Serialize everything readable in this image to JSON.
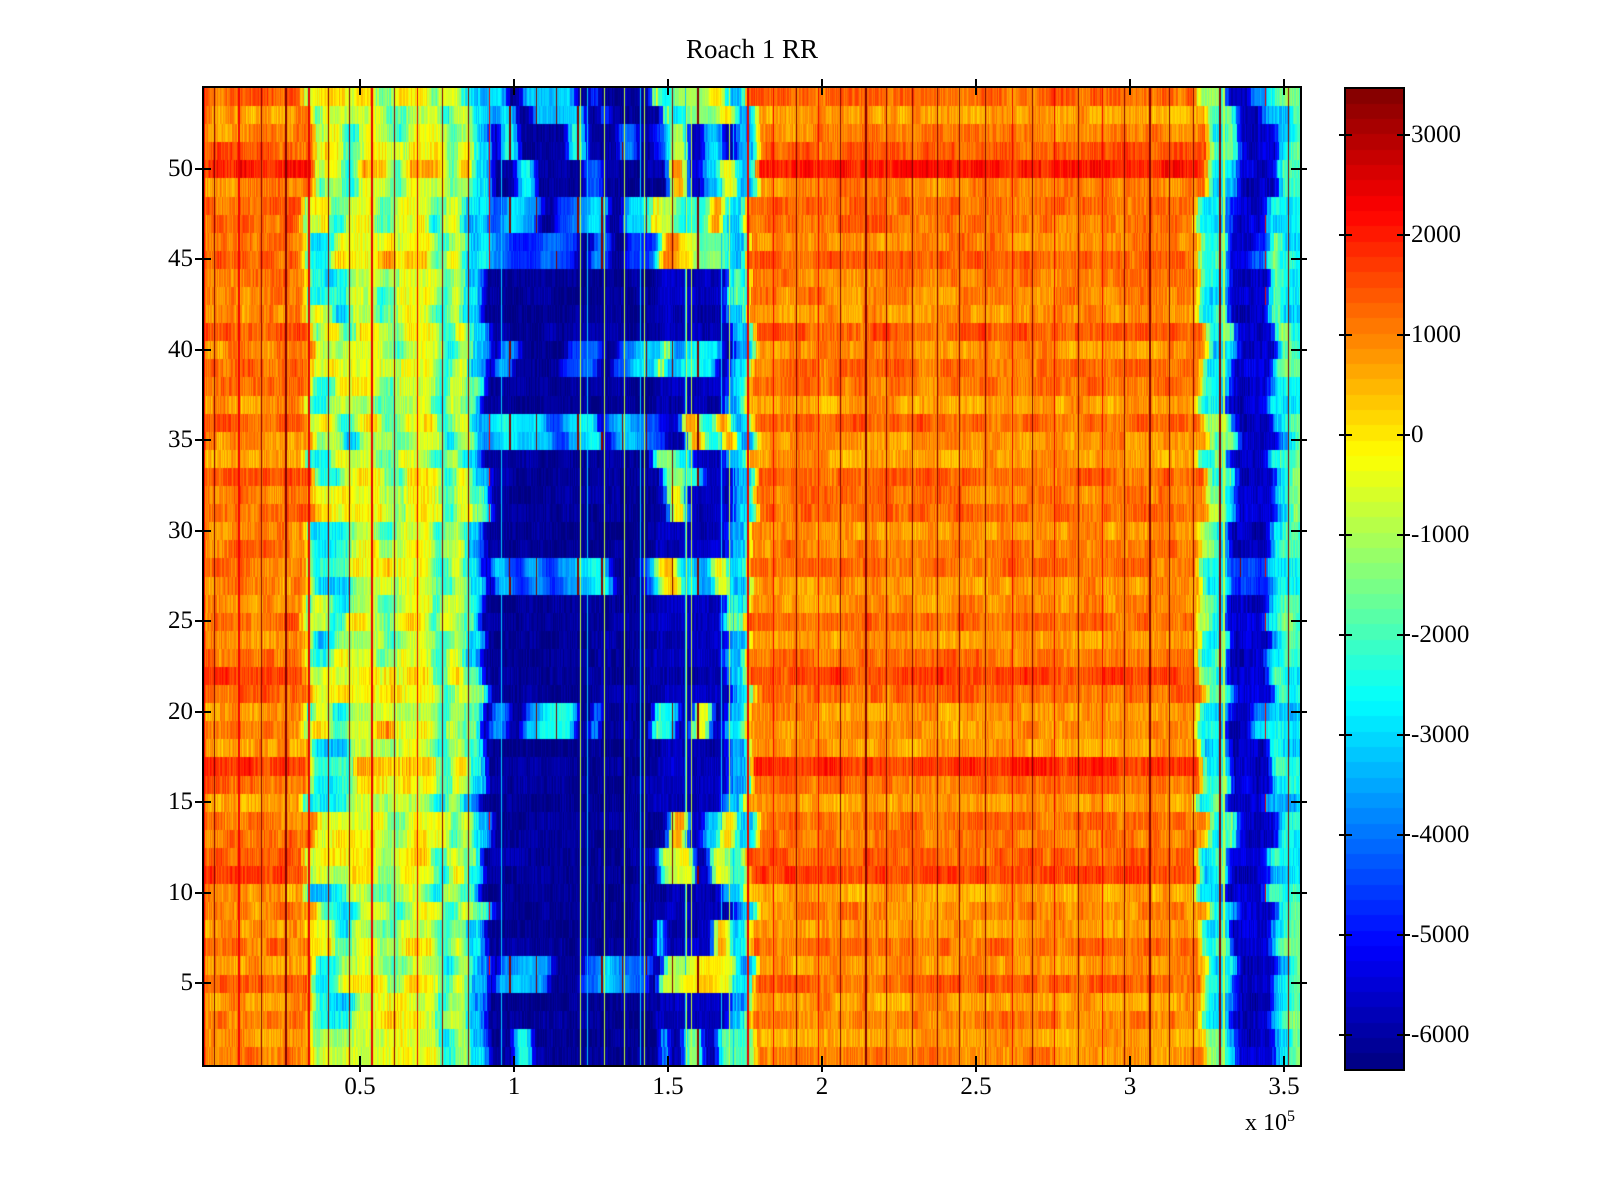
{
  "figure": {
    "title": "Roach 1 RR",
    "background_color": "#ffffff",
    "axes_color": "#000000"
  },
  "axes": {
    "x": {
      "tick_values": [
        0.5,
        1,
        1.5,
        2,
        2.5,
        3,
        3.5
      ],
      "tick_labels": [
        "0.5",
        "1",
        "1.5",
        "2",
        "2.5",
        "3",
        "3.5"
      ],
      "exponent_text": "x 10",
      "exponent_power": "5"
    },
    "y": {
      "tick_values": [
        5,
        10,
        15,
        20,
        25,
        30,
        35,
        40,
        45,
        50
      ],
      "tick_labels": [
        "5",
        "10",
        "15",
        "20",
        "25",
        "30",
        "35",
        "40",
        "45",
        "50"
      ]
    }
  },
  "colorbar": {
    "tick_values": [
      3000,
      2000,
      1000,
      0,
      -1000,
      -2000,
      -3000,
      -4000,
      -5000,
      -6000
    ],
    "tick_labels": [
      "3000",
      "2000",
      "1000",
      "0",
      "-1000",
      "-2000",
      "-3000",
      "-4000",
      "-5000",
      "-6000"
    ],
    "value_range": [
      -6340,
      3460
    ],
    "colormap": "jet",
    "steps": 64
  },
  "chart_data": {
    "type": "heatmap",
    "title": "Roach 1 RR",
    "x_range": [
      0,
      355000
    ],
    "x_units_exponent": 5,
    "y_range": [
      0.5,
      54.5
    ],
    "n_rows": 54,
    "color_axis": [
      -6340,
      3460
    ],
    "colormap": "jet",
    "legend_position": "right-colorbar",
    "description": "Trial-by-time heatmap: 54 rows (trials) by ~3.55e5 time samples. Warm orange zone 0-0.33e5; alternating cyan/yellow column bands 0.33-0.9e5; deep navy zone 0.9-1.7e5 with cyan/yellow horizontal patch rows and a checkered sub-band 1.45-1.7e5; bright cyan column 1.70-1.77e5; broad orange zone 1.77-3.23e5 crossed by periodic thin dark-red streak lines ~every 0.08e5; cyan band 3.23-3.33e5 with thin yellow line at 3.30e5; navy band 3.33-3.46e5; cyan band to right edge.",
    "x_profile_bands": [
      {
        "from": -0.2,
        "to": 0.335,
        "base": 1050,
        "noise": 520,
        "row_amp": 1.0,
        "kind": "warm"
      },
      {
        "from": 0.335,
        "to": 0.475,
        "base": -2550,
        "noise": 750,
        "row_amp": 1.1,
        "kind": "cool",
        "rowpatch": 2100,
        "rowpatch_p": 0.42
      },
      {
        "from": 0.475,
        "to": 0.565,
        "base": -450,
        "noise": 680,
        "row_amp": 1.2,
        "kind": "warm"
      },
      {
        "from": 0.565,
        "to": 0.635,
        "base": -1650,
        "noise": 900,
        "row_amp": 1.3,
        "kind": "cool",
        "rowpatch": 1500,
        "rowpatch_p": 0.35
      },
      {
        "from": 0.635,
        "to": 0.745,
        "base": -350,
        "noise": 650,
        "row_amp": 1.2,
        "kind": "warm"
      },
      {
        "from": 0.745,
        "to": 0.795,
        "base": -2400,
        "noise": 700,
        "row_amp": 1.0,
        "kind": "cool",
        "rowpatch": 1500,
        "rowpatch_p": 0.3
      },
      {
        "from": 0.795,
        "to": 0.845,
        "base": -700,
        "noise": 640,
        "row_amp": 1.2,
        "kind": "warm"
      },
      {
        "from": 0.845,
        "to": 0.905,
        "base": -3150,
        "noise": 800,
        "row_amp": 0.8,
        "kind": "cool",
        "rowpatch": 1200,
        "rowpatch_p": 0.25
      },
      {
        "from": 0.905,
        "to": 1.29,
        "base": -6080,
        "noise": 260,
        "row_amp": 0.25,
        "kind": "deep",
        "patch": 2700,
        "patch_p": 0.34
      },
      {
        "from": 1.29,
        "to": 1.465,
        "base": -6080,
        "noise": 300,
        "row_amp": 0.25,
        "kind": "deep",
        "patch": 2400,
        "patch_p": 0.3
      },
      {
        "from": 1.465,
        "to": 1.7,
        "base": -5750,
        "noise": 350,
        "row_amp": 0.3,
        "kind": "deep",
        "patch": 4900,
        "patch_p": 0.46
      },
      {
        "from": 1.7,
        "to": 1.765,
        "base": -3300,
        "noise": 620,
        "row_amp": 0.6,
        "kind": "cool",
        "rowpatch": 1400,
        "rowpatch_p": 0.3
      },
      {
        "from": 1.765,
        "to": 3.235,
        "base": 1020,
        "noise": 470,
        "row_amp": 1.0,
        "kind": "warm"
      },
      {
        "from": 3.235,
        "to": 3.325,
        "base": -2750,
        "noise": 640,
        "row_amp": 0.8,
        "kind": "cool",
        "rowpatch": 1300,
        "rowpatch_p": 0.4
      },
      {
        "from": 3.325,
        "to": 3.46,
        "base": -5650,
        "noise": 460,
        "row_amp": 0.4,
        "kind": "deep",
        "patch": 1600,
        "patch_p": 0.22
      },
      {
        "from": 3.46,
        "to": 3.62,
        "base": -2850,
        "noise": 700,
        "row_amp": 0.8,
        "kind": "cool",
        "rowpatch": 1100,
        "rowpatch_p": 0.45
      }
    ],
    "row_effects": {
      "red_rows": [
        11,
        17,
        22,
        50
      ],
      "red_boost": 700,
      "pale_rows": [
        19,
        34
      ],
      "pale_drop": -450,
      "row_variation": 330,
      "edge_jitter": 0.05
    },
    "streaks": {
      "spacing_px": 23.7,
      "dark_value": 3380,
      "bright_value": 2320,
      "bright_fraction": 0.22,
      "wide_fraction": 0.3,
      "cool_count": 14,
      "cool_zone": [
        0.92,
        1.72
      ],
      "cool_values": [
        -3150,
        -780
      ],
      "yellow_line_u": 3.302,
      "yellow_line_value": -850
    },
    "noise": {
      "cell_block_u": 0.039,
      "cell_amp": 0.7,
      "fine_amp_base": 140,
      "fine_amp_scale": 0.5,
      "smooth_du": 0.013
    }
  }
}
